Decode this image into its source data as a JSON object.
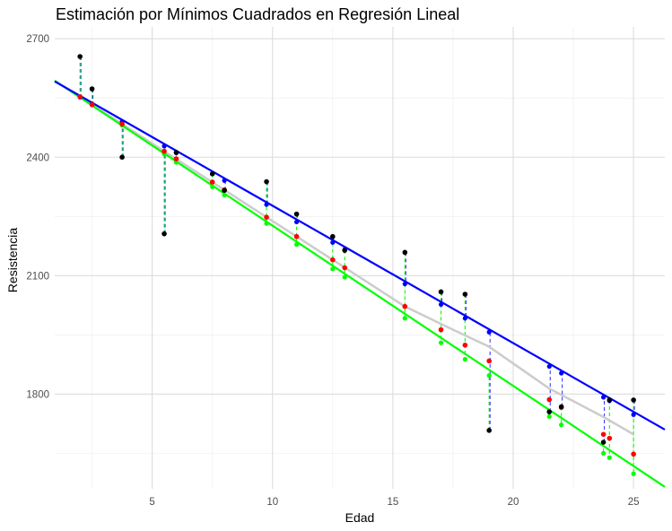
{
  "chart_data": {
    "type": "scatter",
    "title": "Estimación por Mínimos Cuadrados en Regresión Lineal",
    "xlabel": "Edad",
    "ylabel": "Resistencia",
    "xlim": [
      0.95,
      26.3
    ],
    "ylim": [
      1560,
      2730
    ],
    "x_ticks": [
      5,
      10,
      15,
      20,
      25
    ],
    "y_ticks": [
      1800,
      2100,
      2400,
      2700
    ],
    "grid": true,
    "legend": "none",
    "observed": {
      "x": [
        2.0,
        2.5,
        3.75,
        5.5,
        6.0,
        7.5,
        8.0,
        9.75,
        11.0,
        12.5,
        13.0,
        15.5,
        17.0,
        18.0,
        19.0,
        21.5,
        22.0,
        23.75,
        24.0,
        25.0
      ],
      "y": [
        2655,
        2573,
        2400,
        2206,
        2412,
        2358,
        2316,
        2338,
        2256,
        2199,
        2164,
        2159,
        2059,
        2053,
        1708,
        1755,
        1768,
        1678,
        1785,
        1785
      ]
    },
    "fitted_ls": {
      "x": [
        2.0,
        2.5,
        3.75,
        5.5,
        6.0,
        7.5,
        8.0,
        9.75,
        11.0,
        12.5,
        13.0,
        15.5,
        17.0,
        18.0,
        19.0,
        21.5,
        22.0,
        23.75,
        24.0,
        25.0
      ],
      "y": [
        2553,
        2533,
        2484,
        2415,
        2396,
        2337,
        2317,
        2248,
        2199,
        2140,
        2120,
        2022,
        1963,
        1924,
        1884,
        1786,
        1766,
        1698,
        1688,
        1648
      ]
    },
    "lines": [
      {
        "color": "#0000ff",
        "x": [
          0.95,
          26.3
        ],
        "y": [
          2592,
          1710
        ]
      },
      {
        "color": "#00ff00",
        "x": [
          0.95,
          26.3
        ],
        "y": [
          2594,
          1565
        ]
      },
      {
        "color": "#cccccc",
        "x": [
          2.0,
          5.5,
          8.0,
          11.0,
          15.5,
          17.5,
          19.0,
          21.5,
          23.75,
          25.0
        ],
        "y": [
          2553,
          2415,
          2317,
          2199,
          2022,
          1963,
          1920,
          1814,
          1742,
          1698
        ]
      }
    ],
    "blue_points": {
      "x": [
        2.0,
        2.5,
        3.75,
        5.5,
        6.0,
        7.5,
        8.0,
        9.75,
        11.0,
        12.5,
        13.0,
        15.5,
        17.0,
        18.0,
        19.0,
        21.5,
        22.0,
        23.75,
        24.0,
        25.0
      ],
      "y": [
        2552,
        2535,
        2490,
        2428,
        2411,
        2358,
        2341,
        2280,
        2236,
        2184,
        2166,
        2079,
        2027,
        1992,
        1957,
        1870,
        1853,
        1792,
        1783,
        1748
      ]
    },
    "green_points": {
      "x": [
        2.0,
        2.5,
        3.75,
        5.5,
        6.0,
        7.5,
        8.0,
        9.75,
        11.0,
        12.5,
        13.0,
        15.5,
        17.0,
        18.0,
        19.0,
        21.5,
        22.0,
        23.75,
        24.0,
        25.0
      ],
      "y": [
        2554,
        2533,
        2481,
        2408,
        2387,
        2325,
        2304,
        2232,
        2179,
        2117,
        2096,
        1992,
        1930,
        1888,
        1847,
        1743,
        1722,
        1650,
        1639,
        1598
      ]
    },
    "colors": {
      "observed": "#000000",
      "fitted": "#ff0000",
      "blue": "#0000ff",
      "green": "#00ff00",
      "smooth": "#cccccc",
      "grid": "#dcdcdc",
      "panel_border": "#e0e0e0"
    }
  }
}
